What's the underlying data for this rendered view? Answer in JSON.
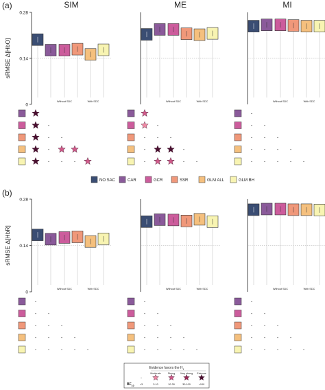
{
  "chart_data": [
    {
      "panel": "(a)",
      "type": "box",
      "ylabel": "sRMSE Δ[HbO]",
      "yticks": [
        "0",
        "0.14",
        "0.28"
      ],
      "ylim": [
        0,
        0.28
      ],
      "x_group_labels": [
        "Without SDC",
        "With SDC"
      ],
      "subplots": [
        {
          "title": "SIM",
          "values": [
            0.197,
            0.165,
            0.165,
            0.168,
            0.152,
            0.166
          ]
        },
        {
          "title": "ME",
          "values": [
            0.213,
            0.228,
            0.228,
            0.215,
            0.212,
            0.216
          ]
        },
        {
          "title": "MI",
          "values": [
            0.238,
            0.242,
            0.242,
            0.24,
            0.238,
            0.238
          ]
        }
      ],
      "bf_tables": [
        {
          "title": "SIM",
          "rows": [
            [
              "★",
              "",
              "",
              "",
              "",
              ""
            ],
            [
              "★",
              "-",
              "",
              "",
              "",
              ""
            ],
            [
              "★",
              "-",
              "-",
              "",
              "",
              ""
            ],
            [
              "★",
              "-",
              "★",
              "★",
              "",
              ""
            ],
            [
              "★",
              "-",
              "-",
              "-",
              "★",
              ""
            ]
          ]
        },
        {
          "title": "ME",
          "rows": [
            [
              "★",
              "",
              "",
              "",
              "",
              ""
            ],
            [
              "★",
              "-",
              "",
              "",
              "",
              ""
            ],
            [
              "-",
              "-",
              "-",
              "",
              "",
              ""
            ],
            [
              "-",
              "★",
              "★",
              "-",
              "",
              ""
            ],
            [
              "-",
              "★",
              "★",
              "-",
              "-",
              ""
            ]
          ]
        },
        {
          "title": "MI",
          "rows": [
            [
              "-",
              "",
              "",
              "",
              "",
              ""
            ],
            [
              "-",
              "-",
              "",
              "",
              "",
              ""
            ],
            [
              "-",
              "-",
              "-",
              "",
              "",
              ""
            ],
            [
              "-",
              "-",
              "-",
              "-",
              "",
              ""
            ],
            [
              "-",
              "-",
              "-",
              "-",
              "-",
              ""
            ]
          ]
        }
      ],
      "bf_levels": [
        [
          0,
          0,
          0,
          0,
          0
        ],
        [
          4,
          0,
          0,
          0,
          0
        ],
        [
          4,
          0,
          0,
          0,
          0
        ],
        [
          4,
          0,
          2,
          2,
          0
        ],
        [
          4,
          0,
          0,
          0,
          2
        ],
        [
          2,
          0,
          0,
          0,
          0
        ],
        [
          1,
          0,
          0,
          0,
          0
        ],
        [
          0,
          0,
          0,
          0,
          0
        ],
        [
          0,
          4,
          4,
          0,
          0
        ],
        [
          0,
          2,
          2,
          0,
          0
        ]
      ]
    },
    {
      "panel": "(b)",
      "type": "box",
      "ylabel": "sRMSE Δ[HbR]",
      "yticks": [
        "0",
        "0.14",
        "0.28"
      ],
      "ylim": [
        0,
        0.28
      ],
      "x_group_labels": [
        "Without SDC",
        "With SDC"
      ],
      "subplots": [
        {
          "title": "",
          "values": [
            0.172,
            0.159,
            0.164,
            0.166,
            0.152,
            0.16
          ]
        },
        {
          "title": "",
          "values": [
            0.212,
            0.218,
            0.217,
            0.214,
            0.219,
            0.212
          ]
        },
        {
          "title": "",
          "values": [
            0.248,
            0.25,
            0.25,
            0.248,
            0.248,
            0.247
          ]
        }
      ],
      "bf_tables": [
        {
          "title": "",
          "rows": [
            [
              "-",
              "",
              "",
              "",
              "",
              ""
            ],
            [
              "-",
              "-",
              "",
              "",
              "",
              ""
            ],
            [
              "-",
              "-",
              "-",
              "",
              "",
              ""
            ],
            [
              "-",
              "-",
              "-",
              "-",
              "",
              ""
            ],
            [
              "-",
              "-",
              "-",
              "-",
              "-",
              ""
            ]
          ]
        },
        {
          "title": "",
          "rows": [
            [
              "-",
              "",
              "",
              "",
              "",
              ""
            ],
            [
              "-",
              "-",
              "",
              "",
              "",
              ""
            ],
            [
              "-",
              "-",
              "-",
              "",
              "",
              ""
            ],
            [
              "-",
              "-",
              "-",
              "-",
              "",
              ""
            ],
            [
              "-",
              "-",
              "-",
              "-",
              "-",
              ""
            ]
          ]
        },
        {
          "title": "",
          "rows": [
            [
              "-",
              "",
              "",
              "",
              "",
              ""
            ],
            [
              "-",
              "-",
              "",
              "",
              "",
              ""
            ],
            [
              "-",
              "-",
              "-",
              "",
              "",
              ""
            ],
            [
              "-",
              "-",
              "-",
              "-",
              "",
              ""
            ],
            [
              "-",
              "-",
              "-",
              "-",
              "-",
              ""
            ]
          ]
        }
      ]
    }
  ],
  "legend": {
    "items": [
      {
        "label": "NO SAC",
        "color": "#3a4d73"
      },
      {
        "label": "CAR",
        "color": "#8a5a9a"
      },
      {
        "label": "GCR",
        "color": "#cc5c9c"
      },
      {
        "label": "SSR",
        "color": "#f0987a"
      },
      {
        "label": "GLM ALL",
        "color": "#f5c07e"
      },
      {
        "label": "GLM  BH",
        "color": "#f8f4b2"
      }
    ]
  },
  "bf_legend": {
    "title": "Evidence favors the H",
    "title_sub": "1",
    "bf_label": "BF",
    "bf_sub": "10",
    "categories": [
      {
        "label": "",
        "range": "<3"
      },
      {
        "label": "Moderate",
        "range": "3-10"
      },
      {
        "label": "Strong",
        "range": "10-30"
      },
      {
        "label": "Very strong",
        "range": "30-100"
      },
      {
        "label": "Extreme",
        "range": ">100"
      }
    ],
    "colors": [
      "#f08aa5",
      "#d05a8a",
      "#9b2c58",
      "#4a1030"
    ]
  }
}
